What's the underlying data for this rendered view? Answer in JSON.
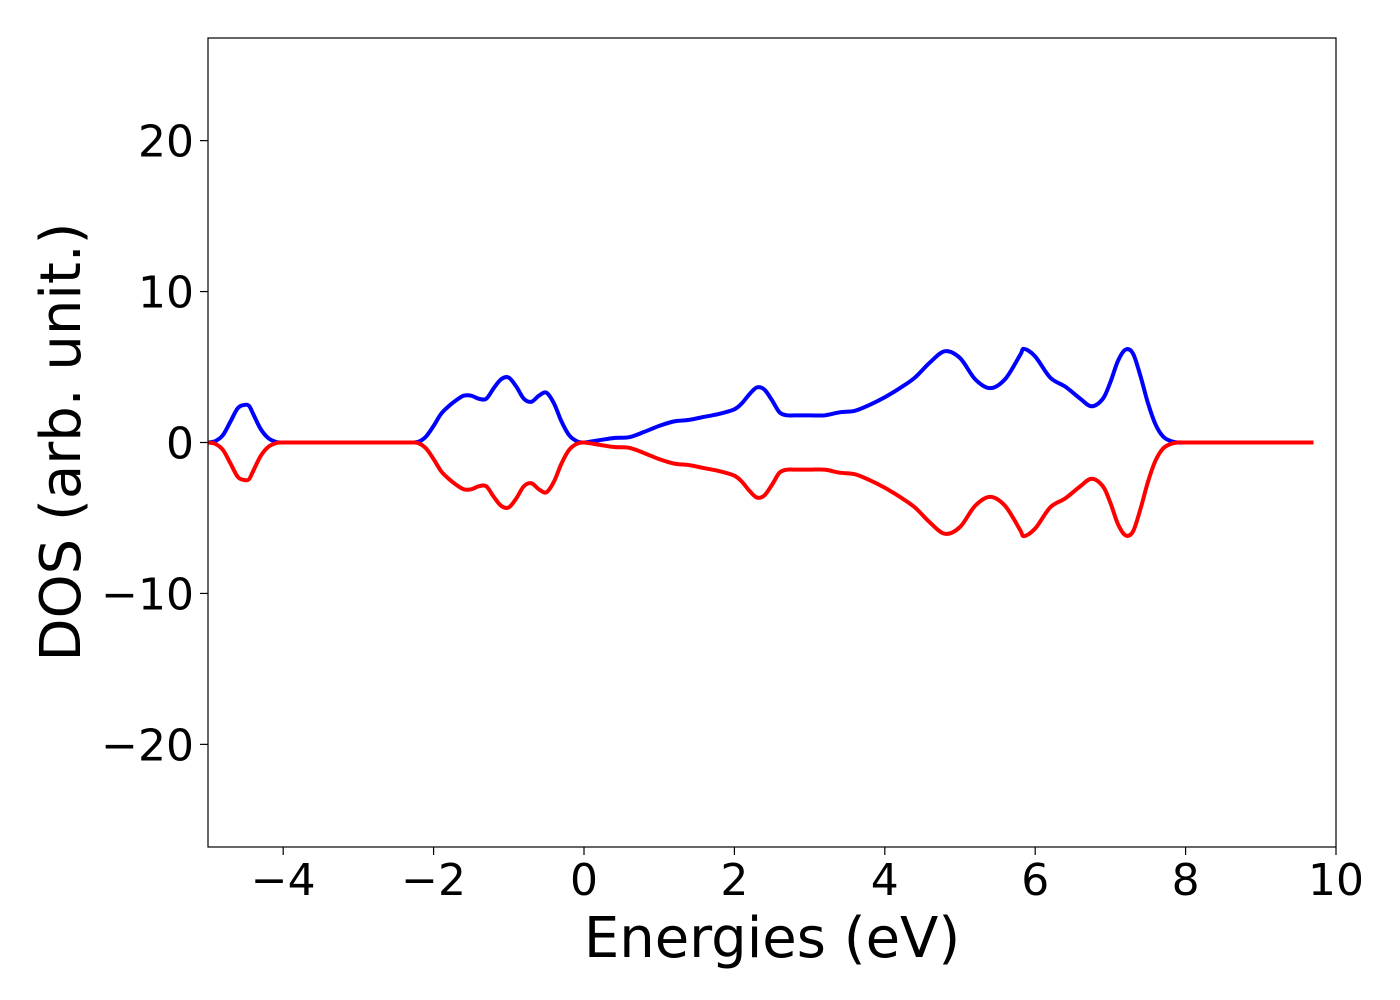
{
  "chart_data": {
    "type": "line",
    "title": "",
    "xlabel": "Energies (eV)",
    "ylabel": "DOS (arb. unit.)",
    "xlim": [
      -5,
      10
    ],
    "ylim": [
      -26.8,
      26.8
    ],
    "xticks": [
      -4,
      -2,
      0,
      2,
      4,
      6,
      8,
      10
    ],
    "xtick_labels": [
      "−4",
      "−2",
      "0",
      "2",
      "4",
      "6",
      "8",
      "10"
    ],
    "yticks": [
      -20,
      -10,
      0,
      10,
      20
    ],
    "ytick_labels": [
      "−20",
      "−10",
      "0",
      "10",
      "20"
    ],
    "grid": false,
    "legend": "none",
    "series": [
      {
        "color": "#0000ff",
        "x": [
          -5.0,
          -4.9,
          -4.8,
          -4.7,
          -4.6,
          -4.5,
          -4.45,
          -4.4,
          -4.3,
          -4.2,
          -4.1,
          -4.0,
          -3.5,
          -3.0,
          -2.5,
          -2.3,
          -2.2,
          -2.1,
          -2.0,
          -1.9,
          -1.8,
          -1.7,
          -1.6,
          -1.5,
          -1.4,
          -1.3,
          -1.2,
          -1.1,
          -1.0,
          -0.9,
          -0.8,
          -0.7,
          -0.6,
          -0.5,
          -0.4,
          -0.3,
          -0.2,
          -0.1,
          0.0,
          0.2,
          0.4,
          0.6,
          0.8,
          1.0,
          1.2,
          1.4,
          1.6,
          1.8,
          2.0,
          2.1,
          2.2,
          2.3,
          2.4,
          2.5,
          2.6,
          2.7,
          2.8,
          3.0,
          3.2,
          3.4,
          3.6,
          3.8,
          4.0,
          4.2,
          4.4,
          4.6,
          4.8,
          5.0,
          5.2,
          5.4,
          5.6,
          5.8,
          5.85,
          6.0,
          6.2,
          6.4,
          6.6,
          6.75,
          6.9,
          7.0,
          7.1,
          7.2,
          7.3,
          7.4,
          7.5,
          7.6,
          7.7,
          7.8,
          7.9,
          8.0,
          8.5,
          9.0,
          9.5,
          9.7
        ],
        "values": [
          0.0,
          0.1,
          0.5,
          1.4,
          2.3,
          2.5,
          2.4,
          1.9,
          0.9,
          0.3,
          0.05,
          0.0,
          0.0,
          0.0,
          0.0,
          0.0,
          0.05,
          0.4,
          1.1,
          1.9,
          2.4,
          2.8,
          3.1,
          3.1,
          2.9,
          2.9,
          3.6,
          4.2,
          4.3,
          3.7,
          2.9,
          2.7,
          3.1,
          3.3,
          2.6,
          1.4,
          0.5,
          0.1,
          0.0,
          0.15,
          0.3,
          0.35,
          0.7,
          1.1,
          1.4,
          1.5,
          1.7,
          1.9,
          2.2,
          2.6,
          3.2,
          3.65,
          3.5,
          2.8,
          2.0,
          1.8,
          1.8,
          1.8,
          1.8,
          2.0,
          2.1,
          2.5,
          3.0,
          3.6,
          4.3,
          5.3,
          6.05,
          5.6,
          4.2,
          3.6,
          4.2,
          5.8,
          6.2,
          5.7,
          4.3,
          3.7,
          2.9,
          2.4,
          2.9,
          4.0,
          5.4,
          6.15,
          5.9,
          4.4,
          2.6,
          1.2,
          0.4,
          0.1,
          0.0,
          0.0,
          0.0,
          0.0,
          0.0,
          0.0
        ]
      },
      {
        "color": "#ff0000",
        "x": [
          -5.0,
          -4.9,
          -4.8,
          -4.7,
          -4.6,
          -4.5,
          -4.45,
          -4.4,
          -4.3,
          -4.2,
          -4.1,
          -4.0,
          -3.5,
          -3.0,
          -2.5,
          -2.3,
          -2.2,
          -2.1,
          -2.0,
          -1.9,
          -1.8,
          -1.7,
          -1.6,
          -1.5,
          -1.4,
          -1.3,
          -1.2,
          -1.1,
          -1.0,
          -0.9,
          -0.8,
          -0.7,
          -0.6,
          -0.5,
          -0.4,
          -0.3,
          -0.2,
          -0.1,
          0.0,
          0.2,
          0.4,
          0.6,
          0.8,
          1.0,
          1.2,
          1.4,
          1.6,
          1.8,
          2.0,
          2.1,
          2.2,
          2.3,
          2.4,
          2.5,
          2.6,
          2.7,
          2.8,
          3.0,
          3.2,
          3.4,
          3.6,
          3.8,
          4.0,
          4.2,
          4.4,
          4.6,
          4.8,
          5.0,
          5.2,
          5.4,
          5.6,
          5.8,
          5.85,
          6.0,
          6.2,
          6.4,
          6.6,
          6.75,
          6.9,
          7.0,
          7.1,
          7.2,
          7.3,
          7.4,
          7.5,
          7.6,
          7.7,
          7.8,
          7.9,
          8.0,
          8.5,
          9.0,
          9.5,
          9.7
        ],
        "values": [
          0.0,
          -0.1,
          -0.5,
          -1.4,
          -2.3,
          -2.5,
          -2.4,
          -1.9,
          -0.9,
          -0.3,
          -0.05,
          0.0,
          0.0,
          0.0,
          0.0,
          0.0,
          -0.05,
          -0.4,
          -1.1,
          -1.9,
          -2.4,
          -2.8,
          -3.1,
          -3.1,
          -2.9,
          -2.9,
          -3.6,
          -4.2,
          -4.3,
          -3.7,
          -2.9,
          -2.7,
          -3.1,
          -3.3,
          -2.6,
          -1.4,
          -0.5,
          -0.1,
          0.0,
          -0.15,
          -0.3,
          -0.35,
          -0.7,
          -1.1,
          -1.4,
          -1.5,
          -1.7,
          -1.9,
          -2.2,
          -2.6,
          -3.2,
          -3.65,
          -3.5,
          -2.8,
          -2.0,
          -1.8,
          -1.8,
          -1.8,
          -1.8,
          -2.0,
          -2.1,
          -2.5,
          -3.0,
          -3.6,
          -4.3,
          -5.3,
          -6.05,
          -5.6,
          -4.2,
          -3.6,
          -4.2,
          -5.8,
          -6.2,
          -5.7,
          -4.3,
          -3.7,
          -2.9,
          -2.4,
          -2.9,
          -4.0,
          -5.4,
          -6.15,
          -5.9,
          -4.4,
          -2.6,
          -1.2,
          -0.4,
          -0.1,
          0.0,
          0.0,
          0.0,
          0.0,
          0.0,
          0.0
        ]
      }
    ]
  }
}
